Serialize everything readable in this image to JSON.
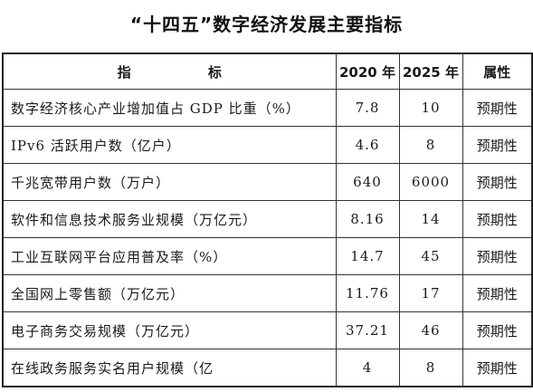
{
  "title": "“十四五”数字经济发展主要指标",
  "table": {
    "headers": [
      "指 标",
      "2020 年",
      "2025 年",
      "属性"
    ],
    "rows": [
      {
        "indicator": "数字经济核心产业增加值占 GDP 比重（%）",
        "y2020": "7.8",
        "y2025": "10",
        "attribute": "预期性"
      },
      {
        "indicator": "IPv6 活跃用户数（亿户）",
        "y2020": "4.6",
        "y2025": "8",
        "attribute": "预期性"
      },
      {
        "indicator": "千兆宽带用户数（万户）",
        "y2020": "640",
        "y2025": "6000",
        "attribute": "预期性"
      },
      {
        "indicator": "软件和信息技术服务业规模（万亿元）",
        "y2020": "8.16",
        "y2025": "14",
        "attribute": "预期性"
      },
      {
        "indicator": "工业互联网平台应用普及率（%）",
        "y2020": "14.7",
        "y2025": "45",
        "attribute": "预期性"
      },
      {
        "indicator": "全国网上零售额（万亿元）",
        "y2020": "11.76",
        "y2025": "17",
        "attribute": "预期性"
      },
      {
        "indicator": "电子商务交易规模（万亿元）",
        "y2020": "37.21",
        "y2025": "46",
        "attribute": "预期性"
      },
      {
        "indicator": "在线政务服务实名用户规模（亿",
        "y2020": "4",
        "y2025": "8",
        "attribute": "预期性"
      }
    ]
  }
}
